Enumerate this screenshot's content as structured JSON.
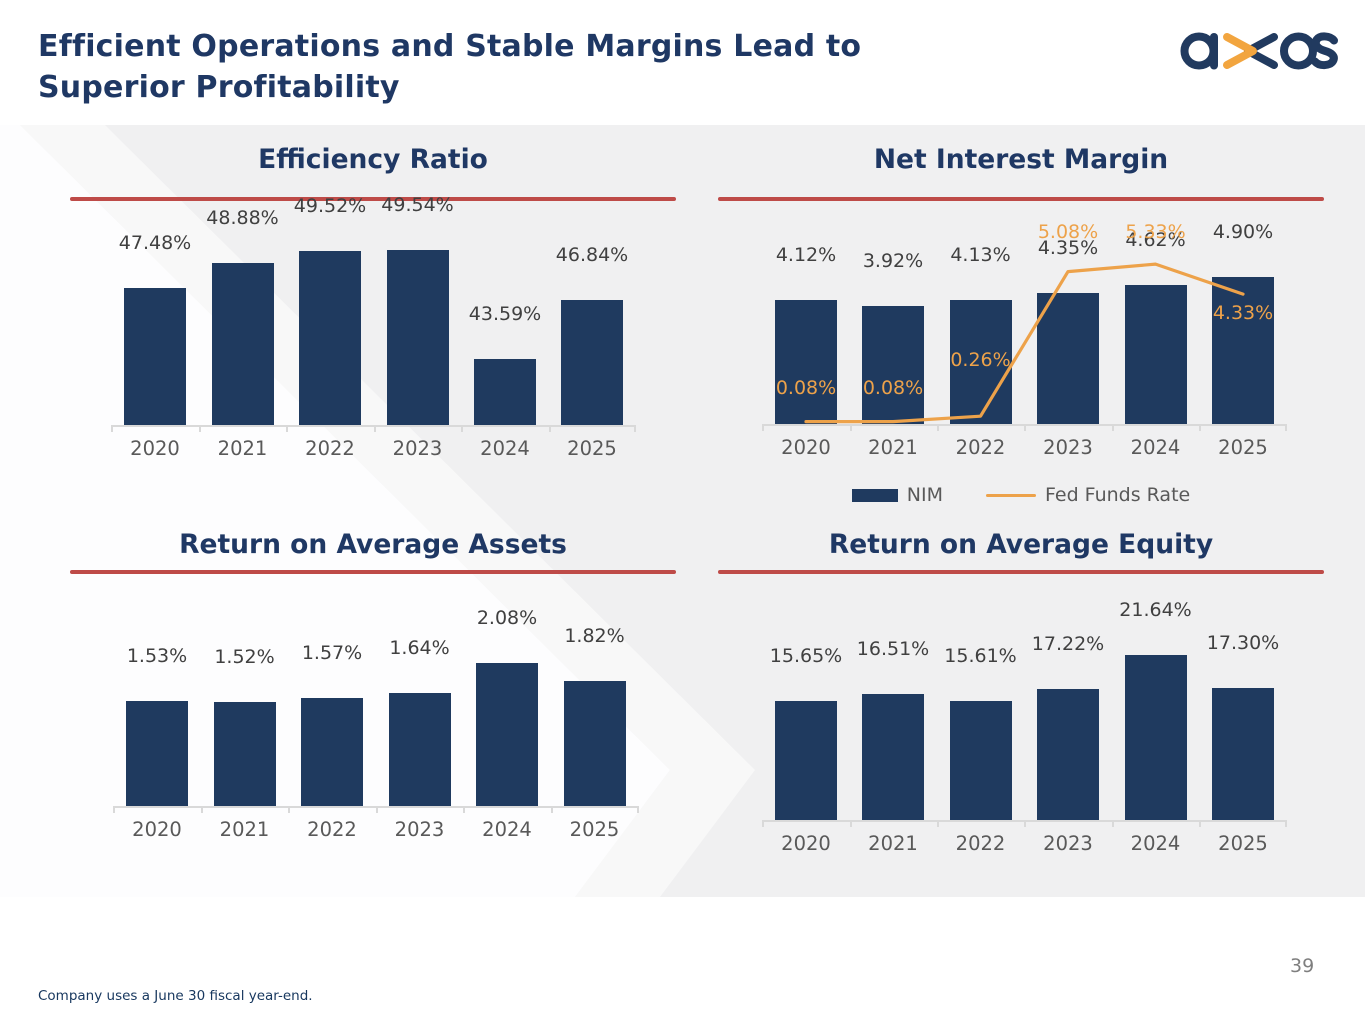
{
  "header": {
    "title_line1": "Efficient Operations and Stable Margins Lead to",
    "title_line2": "Superior Profitability",
    "logo_text": "axos"
  },
  "footer": {
    "footnote": "Company uses a June 30 fiscal year-end.",
    "page_number": "39"
  },
  "colors": {
    "bar_navy": "#1F3A5F",
    "title_navy": "#1F3864",
    "rule_red": "#BE4B48",
    "orange": "#EDA24A",
    "logo_orange": "#F2A53F",
    "band_gray": "#F0F0F1",
    "value_label_gray": "#404040",
    "axis_label_gray": "#595959",
    "axis_line_gray": "#D9D9D9"
  },
  "chart_data": [
    {
      "id": "efficiency_ratio",
      "type": "bar",
      "title": "Efficiency Ratio",
      "categories": [
        "2020",
        "2021",
        "2022",
        "2023",
        "2024",
        "2025"
      ],
      "values": [
        47.48,
        48.88,
        49.52,
        49.54,
        43.59,
        46.84
      ],
      "labels": [
        "47.48%",
        "48.88%",
        "49.52%",
        "49.54%",
        "43.59%",
        "46.84%"
      ],
      "ylim": [
        40,
        49.84
      ],
      "grid": false,
      "legend_position": "none"
    },
    {
      "id": "net_interest_margin",
      "type": "bar+line",
      "title": "Net Interest Margin",
      "categories": [
        "2020",
        "2021",
        "2022",
        "2023",
        "2024",
        "2025"
      ],
      "series": [
        {
          "name": "NIM",
          "type": "bar",
          "values": [
            4.12,
            3.92,
            4.13,
            4.35,
            4.62,
            4.9
          ],
          "labels": [
            "4.12%",
            "3.92%",
            "4.13%",
            "4.35%",
            "4.62%",
            "4.90%"
          ]
        },
        {
          "name": "Fed Funds Rate",
          "type": "line",
          "values": [
            0.08,
            0.08,
            0.26,
            5.08,
            5.33,
            4.33
          ],
          "labels": [
            "0.08%",
            "0.08%",
            "0.26%",
            "5.08%",
            "5.33%",
            "4.33%"
          ]
        }
      ],
      "ylim": [
        0,
        6
      ],
      "grid": false,
      "legend_position": "bottom"
    },
    {
      "id": "return_on_average_assets",
      "type": "bar",
      "title": "Return on Average Assets",
      "categories": [
        "2020",
        "2021",
        "2022",
        "2023",
        "2024",
        "2025"
      ],
      "values": [
        1.53,
        1.52,
        1.57,
        1.64,
        2.08,
        1.82
      ],
      "labels": [
        "1.53%",
        "1.52%",
        "1.57%",
        "1.64%",
        "2.08%",
        "1.82%"
      ],
      "ylim": [
        0,
        2.33
      ],
      "grid": false,
      "legend_position": "none"
    },
    {
      "id": "return_on_average_equity",
      "type": "bar",
      "title": "Return on Average Equity",
      "categories": [
        "2020",
        "2021",
        "2022",
        "2023",
        "2024",
        "2025"
      ],
      "values": [
        15.65,
        16.51,
        15.61,
        17.22,
        21.64,
        17.3
      ],
      "labels": [
        "15.65%",
        "16.51%",
        "15.61%",
        "17.22%",
        "21.64%",
        "17.30%"
      ],
      "ylim": [
        0,
        22.1
      ],
      "grid": false,
      "legend_position": "none"
    }
  ]
}
